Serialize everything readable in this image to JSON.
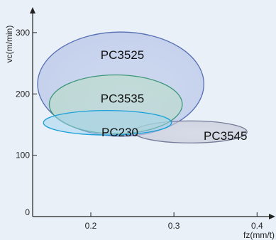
{
  "chart_data": {
    "type": "region",
    "xlabel": "fz(mm/t)",
    "ylabel": "vc(m/min)",
    "xlim": [
      0.13,
      0.41
    ],
    "ylim": [
      0,
      330
    ],
    "x_ticks": [
      0.2,
      0.3,
      0.4
    ],
    "x_tick_labels": [
      "0.2",
      "0.3",
      "0.4"
    ],
    "y_ticks": [
      0,
      100,
      200,
      300
    ],
    "y_tick_labels": [
      "0",
      "100",
      "200",
      "300"
    ],
    "grid": false,
    "regions": [
      {
        "name": "PC3525",
        "cx": 0.236,
        "cy": 216,
        "rx": 0.1,
        "ry": 85,
        "fill": "#b8c6e8",
        "stroke": "#3f5aa8",
        "stroke_opacity": 0.85,
        "fill_opacity": 0.75
      },
      {
        "name": "PC3545",
        "cx": 0.32,
        "cy": 138,
        "rx": 0.068,
        "ry": 18,
        "fill": "#c6c9d8",
        "stroke": "#6a6f8c",
        "stroke_opacity": 0.9,
        "fill_opacity": 0.7
      },
      {
        "name": "PC3535",
        "cx": 0.23,
        "cy": 183,
        "rx": 0.08,
        "ry": 48,
        "fill": "#b9dcc8",
        "stroke": "#2f8f6f",
        "stroke_opacity": 0.9,
        "fill_opacity": 0.65
      },
      {
        "name": "PC230",
        "cx": 0.22,
        "cy": 153,
        "rx": 0.077,
        "ry": 20,
        "fill": "#9ed3ee",
        "stroke": "#1aa0d8",
        "stroke_opacity": 1.0,
        "fill_opacity": 0.55
      }
    ],
    "labels": [
      {
        "text": "PC3525",
        "x": 0.238,
        "y": 262
      },
      {
        "text": "PC3535",
        "x": 0.238,
        "y": 191
      },
      {
        "text": "PC230",
        "x": 0.235,
        "y": 136
      },
      {
        "text": "PC3545",
        "x": 0.362,
        "y": 130
      }
    ]
  }
}
